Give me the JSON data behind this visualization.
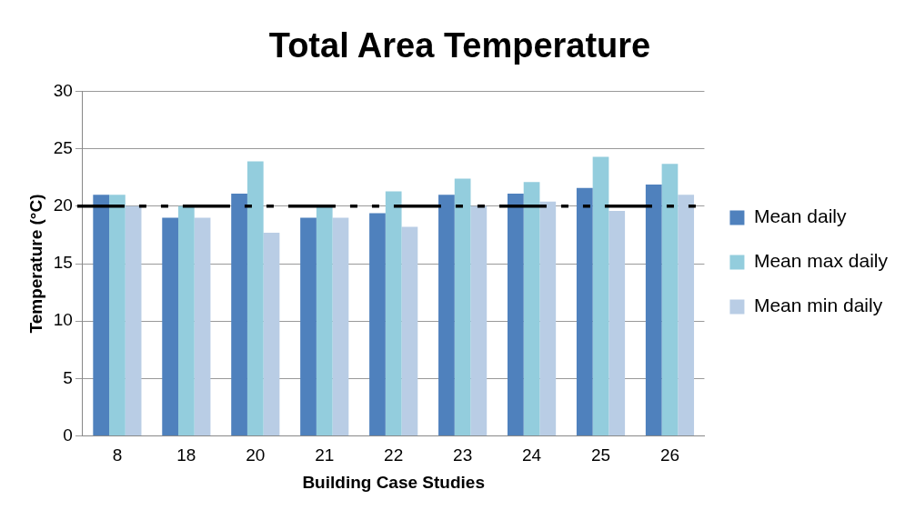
{
  "chart_data": {
    "type": "bar",
    "title": "Total Area Temperature",
    "xlabel": "Building Case Studies",
    "ylabel": "Temperature (°C)",
    "categories": [
      "8",
      "18",
      "20",
      "21",
      "22",
      "23",
      "24",
      "25",
      "26"
    ],
    "series": [
      {
        "name": "Mean daily",
        "color": "#4f81bd",
        "values": [
          21,
          19,
          21.1,
          19,
          19.4,
          21,
          21.1,
          21.6,
          21.9
        ]
      },
      {
        "name": "Mean max daily",
        "color": "#93cddd",
        "values": [
          21,
          20,
          23.9,
          20,
          21.3,
          22.4,
          22.1,
          24.3,
          23.7
        ]
      },
      {
        "name": "Mean min daily",
        "color": "#b9cde5",
        "values": [
          20,
          19,
          17.7,
          19,
          18.2,
          20,
          20.4,
          19.6,
          21
        ]
      }
    ],
    "ylim": [
      0,
      30
    ],
    "yticks": [
      0,
      5,
      10,
      15,
      20,
      25,
      30
    ],
    "grid": "y",
    "legend": "right",
    "ref_lines": [
      {
        "axis": "y",
        "value": 20,
        "color": "#000000",
        "line_style": "dashdot"
      }
    ]
  }
}
